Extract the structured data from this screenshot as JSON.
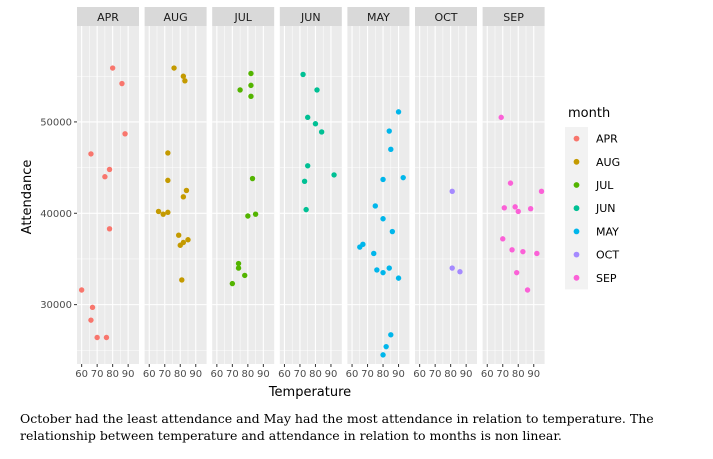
{
  "chart_data": {
    "type": "scatter",
    "facet_var": "month",
    "facets": [
      "APR",
      "AUG",
      "JUL",
      "JUN",
      "MAY",
      "OCT",
      "SEP"
    ],
    "xlabel": "Temperature",
    "ylabel": "Attendance",
    "x_ticks": [
      60,
      70,
      80,
      90
    ],
    "y_ticks": [
      30000,
      40000,
      50000
    ],
    "y_tick_labels": [
      "30000",
      "40000",
      "50000"
    ],
    "xlim": [
      57,
      97
    ],
    "ylim": [
      23500,
      60500
    ],
    "legend_title": "month",
    "legend_position": "right",
    "grid": true,
    "colors": {
      "APR": "#F8766D",
      "AUG": "#C49A00",
      "JUL": "#53B400",
      "JUN": "#00C094",
      "MAY": "#00B6EB",
      "OCT": "#A58AFF",
      "SEP": "#FB61D7"
    },
    "series": [
      {
        "name": "APR",
        "points": [
          [
            80,
            55900
          ],
          [
            86,
            54200
          ],
          [
            88,
            48700
          ],
          [
            66,
            46500
          ],
          [
            78,
            44800
          ],
          [
            75,
            44000
          ],
          [
            78,
            38300
          ],
          [
            60,
            31600
          ],
          [
            67,
            29700
          ],
          [
            66,
            28300
          ],
          [
            70,
            26400
          ],
          [
            76,
            26400
          ]
        ]
      },
      {
        "name": "AUG",
        "points": [
          [
            76,
            55900
          ],
          [
            82,
            55000
          ],
          [
            83,
            54500
          ],
          [
            72,
            46600
          ],
          [
            72,
            43600
          ],
          [
            84,
            42500
          ],
          [
            82,
            41800
          ],
          [
            66,
            40200
          ],
          [
            69,
            39900
          ],
          [
            72,
            40100
          ],
          [
            79,
            37600
          ],
          [
            85,
            37100
          ],
          [
            82,
            36800
          ],
          [
            80,
            36500
          ],
          [
            81,
            32700
          ]
        ]
      },
      {
        "name": "JUL",
        "points": [
          [
            82,
            55300
          ],
          [
            75,
            53500
          ],
          [
            82,
            54000
          ],
          [
            82,
            52800
          ],
          [
            83,
            43800
          ],
          [
            80,
            39700
          ],
          [
            85,
            39900
          ],
          [
            74,
            34500
          ],
          [
            74,
            34000
          ],
          [
            78,
            33200
          ],
          [
            70,
            32300
          ]
        ]
      },
      {
        "name": "JUN",
        "points": [
          [
            72,
            55200
          ],
          [
            81,
            53500
          ],
          [
            75,
            50500
          ],
          [
            80,
            49800
          ],
          [
            84,
            48900
          ],
          [
            75,
            45200
          ],
          [
            92,
            44200
          ],
          [
            73,
            43500
          ],
          [
            74,
            40400
          ]
        ]
      },
      {
        "name": "MAY",
        "points": [
          [
            90,
            51100
          ],
          [
            84,
            49000
          ],
          [
            85,
            47000
          ],
          [
            80,
            43700
          ],
          [
            93,
            43900
          ],
          [
            75,
            40800
          ],
          [
            80,
            39400
          ],
          [
            86,
            38000
          ],
          [
            65,
            36300
          ],
          [
            67,
            36600
          ],
          [
            74,
            35600
          ],
          [
            76,
            33800
          ],
          [
            84,
            34000
          ],
          [
            80,
            33500
          ],
          [
            90,
            32900
          ],
          [
            85,
            26700
          ],
          [
            82,
            25400
          ],
          [
            80,
            24500
          ]
        ]
      },
      {
        "name": "OCT",
        "points": [
          [
            81,
            42400
          ],
          [
            81,
            34000
          ],
          [
            86,
            33600
          ]
        ]
      },
      {
        "name": "SEP",
        "points": [
          [
            69,
            50500
          ],
          [
            75,
            43300
          ],
          [
            95,
            42400
          ],
          [
            71,
            40600
          ],
          [
            78,
            40700
          ],
          [
            80,
            40200
          ],
          [
            88,
            40500
          ],
          [
            70,
            37200
          ],
          [
            76,
            36000
          ],
          [
            83,
            35800
          ],
          [
            92,
            35600
          ],
          [
            79,
            33500
          ],
          [
            86,
            31600
          ]
        ]
      }
    ]
  },
  "caption": "October had the least attendance and May had the most attendance in relation to temperature.  The relationship between temperature and attendance in relation to months is non linear."
}
